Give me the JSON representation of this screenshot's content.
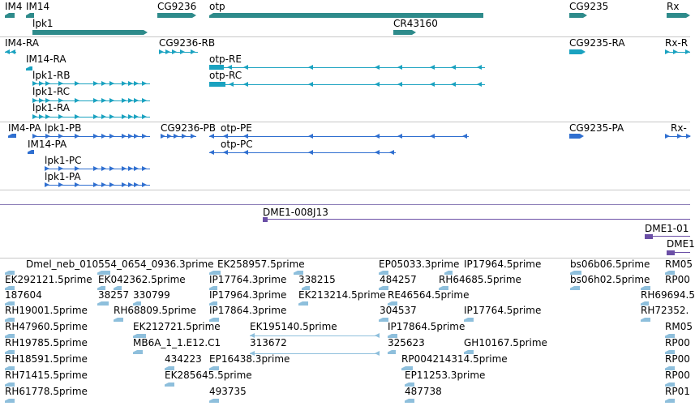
{
  "colors": {
    "gene": "#2e8b8b",
    "transcript": "#1aa2c0",
    "protein": "#2f6fd0",
    "clone": "#6b4fa6",
    "est": "#8ebfdc",
    "separator": "#c8c8c8",
    "text": "#000000"
  },
  "tracks": {
    "genes": {
      "labels": [
        "IM4",
        "IM14",
        "lpk1",
        "CG9236",
        "otp",
        "CR43160",
        "CG9235",
        "Rx"
      ]
    },
    "transcripts": {
      "labels": [
        "IM4-RA",
        "IM14-RA",
        "lpk1-RB",
        "lpk1-RC",
        "lpk1-RA",
        "CG9236-RB",
        "otp-RE",
        "otp-RC",
        "CG9235-RA",
        "Rx-R"
      ]
    },
    "proteins": {
      "labels": [
        "IM4-PA",
        "lpk1-PB",
        "IM14-PA",
        "lpk1-PC",
        "lpk1-PA",
        "CG9236-PB",
        "otp-PE",
        "otp-PC",
        "CG9235-PA",
        "Rx-"
      ]
    },
    "clones": {
      "labels": [
        "DME1-008J13",
        "DME1-01",
        "DME1"
      ]
    },
    "ests": {
      "labels": [
        "Dmel_neb_010554_0654_0936.3prime",
        "EK258957.5prime",
        "EP05033.3prime",
        "IP17964.5prime",
        "bs06b06.5prime",
        "RM05",
        "EK292121.5prime",
        "EK042362.5prime",
        "IP17764.3prime",
        "338215",
        "484257",
        "RH64685.5prime",
        "bs06h02.5prime",
        "RP00",
        "187604",
        "38257",
        "330799",
        "IP17964.3prime",
        "EK213214.5prime",
        "RE46564.5prime",
        "RH69694.5",
        "RH19001.5prime",
        "RH68809.5prime",
        "IP17864.3prime",
        "304537",
        "IP17764.5prime",
        "RH72352.",
        "RH47960.5prime",
        "EK212721.5prime",
        "EK195140.5prime",
        "IP17864.5prime",
        "RM05",
        "RH19785.5prime",
        "MB6A_1_1.E12.C1",
        "313672",
        "325623",
        "GH10167.5prime",
        "RP00",
        "RH18591.5prime",
        "434223",
        "EP16438.3prime",
        "RP004214314.5prime",
        "RP00",
        "RH71415.5prime",
        "EK285645.5prime",
        "EP11253.3prime",
        "RP00",
        "RH61778.5prime",
        "493735",
        "487738",
        "RP01"
      ]
    }
  }
}
